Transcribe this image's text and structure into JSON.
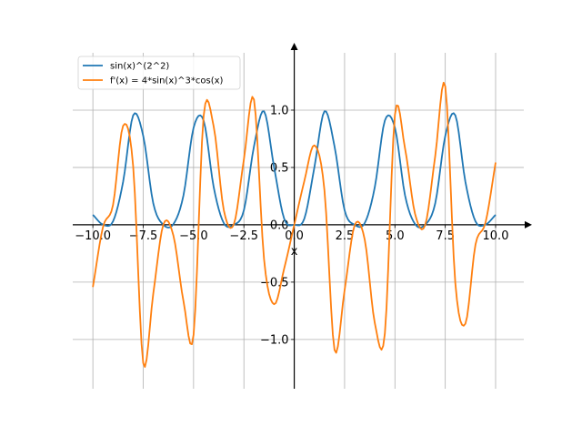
{
  "chart_data": {
    "type": "line",
    "xlabel": "x",
    "xlim": [
      -11.0,
      11.4
    ],
    "ylim": [
      -1.43,
      1.5
    ],
    "grid": true,
    "legend_position": "top-left",
    "x_ticks": [
      {
        "value": -10.0,
        "label": "−10.0"
      },
      {
        "value": -7.5,
        "label": "−7.5"
      },
      {
        "value": -5.0,
        "label": "−5.0"
      },
      {
        "value": -2.5,
        "label": "−2.5"
      },
      {
        "value": 0.0,
        "label": "0.0"
      },
      {
        "value": 2.5,
        "label": "2.5"
      },
      {
        "value": 5.0,
        "label": "5.0"
      },
      {
        "value": 7.5,
        "label": "7.5"
      },
      {
        "value": 10.0,
        "label": "10.0"
      }
    ],
    "y_ticks": [
      {
        "value": -1.0,
        "label": "−1.0"
      },
      {
        "value": -0.5,
        "label": "−0.5"
      },
      {
        "value": 0.0,
        "label": "0.0"
      },
      {
        "value": 0.5,
        "label": "0.5"
      },
      {
        "value": 1.0,
        "label": "1.0"
      }
    ],
    "x": [
      -10.0,
      -9.5,
      -9.0,
      -8.5,
      -8.0,
      -7.5,
      -7.0,
      -6.5,
      -6.0,
      -5.5,
      -5.0,
      -4.5,
      -4.0,
      -3.5,
      -3.0,
      -2.5,
      -2.0,
      -1.5,
      -1.0,
      -0.5,
      0.0,
      0.5,
      1.0,
      1.5,
      2.0,
      2.5,
      3.0,
      3.5,
      4.0,
      4.5,
      5.0,
      5.5,
      6.0,
      6.5,
      7.0,
      7.5,
      8.0,
      8.5,
      9.0,
      9.5,
      10.0
    ],
    "series": [
      {
        "name": "sin(x)^(2^2)",
        "color": "#1f77b4",
        "values": [
          0.087,
          0.002,
          0.03,
          0.374,
          0.955,
          0.775,
          0.186,
          0.0,
          0.006,
          0.258,
          0.846,
          0.909,
          0.328,
          0.015,
          0.0,
          0.127,
          0.684,
          0.99,
          0.501,
          0.053,
          0.0,
          0.053,
          0.501,
          0.99,
          0.684,
          0.127,
          0.0,
          0.015,
          0.328,
          0.909,
          0.846,
          0.258,
          0.006,
          0.0,
          0.186,
          0.775,
          0.955,
          0.374,
          0.03,
          0.002,
          0.087
        ]
      },
      {
        "name": "f'(x) = 4*sin(x)^3*cos(x)",
        "color": "#ff7f0e",
        "values": [
          -0.543,
          -0.021,
          0.173,
          0.863,
          0.51,
          -1.207,
          -0.598,
          0.003,
          -0.095,
          -0.667,
          -0.96,
          0.949,
          0.856,
          0.129,
          0.004,
          0.571,
          1.092,
          -0.3,
          -0.693,
          -0.381,
          0.0,
          0.381,
          0.693,
          0.3,
          -1.092,
          -0.571,
          -0.004,
          -0.129,
          -0.856,
          -0.949,
          0.96,
          0.667,
          0.095,
          -0.003,
          0.598,
          1.207,
          -0.51,
          -0.863,
          -0.173,
          0.021,
          0.543
        ]
      }
    ]
  }
}
